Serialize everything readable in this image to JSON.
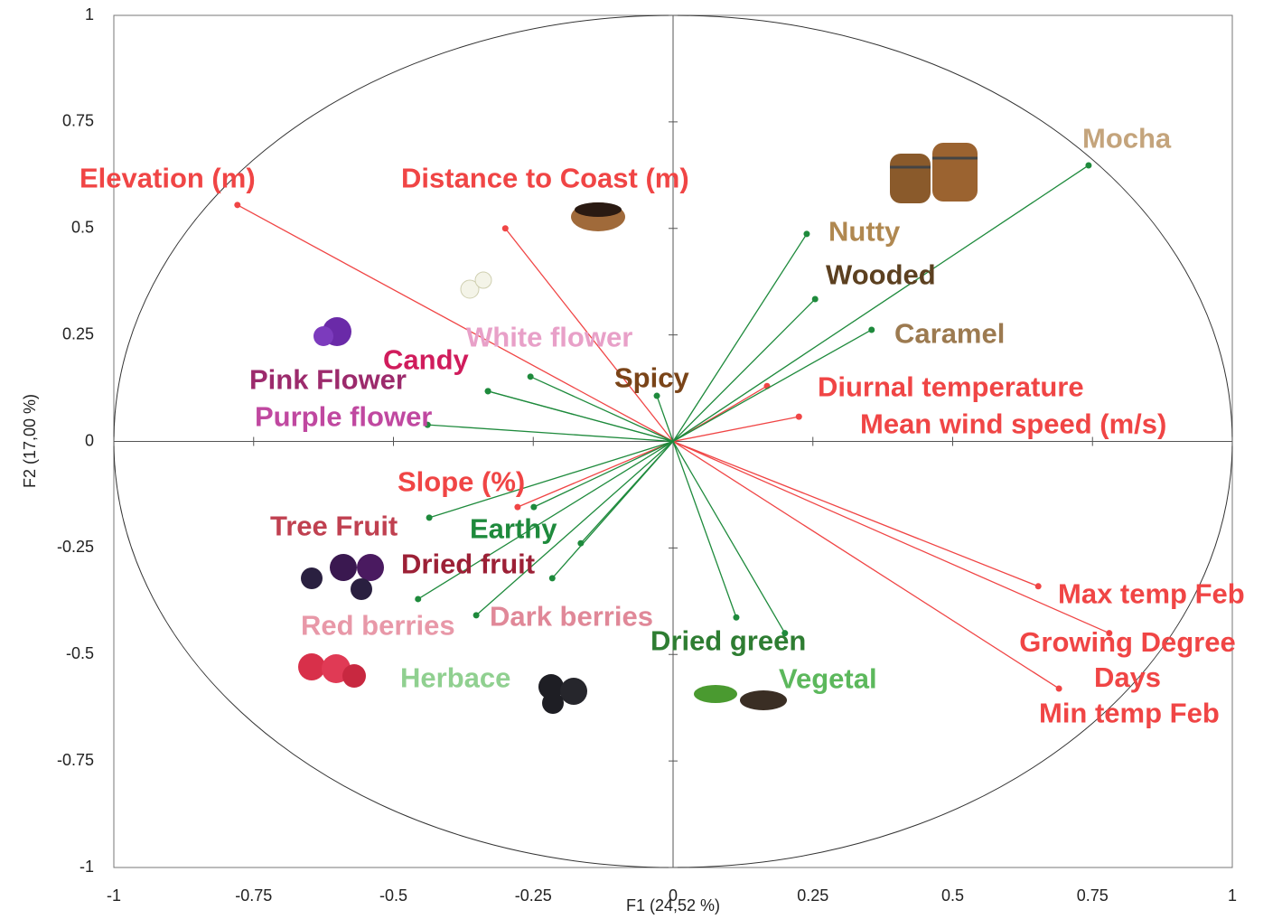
{
  "chart_data": {
    "type": "biplot",
    "x_label": "F1 (24,52 %)",
    "y_label": "F2 (17,00 %)",
    "xlim": [
      -1,
      1
    ],
    "ylim": [
      -1,
      1
    ],
    "xticks": [
      -1,
      -0.75,
      -0.5,
      -0.25,
      0,
      0.25,
      0.5,
      0.75,
      1
    ],
    "yticks": [
      -1,
      -0.75,
      -0.5,
      -0.25,
      0,
      0.25,
      0.5,
      0.75,
      1
    ],
    "points": [
      {
        "label": "Elevation (m)",
        "x": -0.779,
        "y": 0.555,
        "color": "#f04545",
        "label_color": "#f04545"
      },
      {
        "label": "Distance to Coast (m)",
        "x": -0.3,
        "y": 0.5,
        "color": "#f04545",
        "label_color": "#f04545"
      },
      {
        "label": "Diurnal temperature",
        "x": 0.168,
        "y": 0.13,
        "color": "#f04545",
        "label_color": "#f04545"
      },
      {
        "label": "Mean wind speed (m/s)",
        "x": 0.225,
        "y": 0.058,
        "color": "#f04545",
        "label_color": "#f04545"
      },
      {
        "label": "Slope (%)",
        "x": -0.278,
        "y": -0.154,
        "color": "#f04545",
        "label_color": "#f04545"
      },
      {
        "label": "Max temp Feb",
        "x": 0.653,
        "y": -0.34,
        "color": "#f04545",
        "label_color": "#f04545"
      },
      {
        "label": "Growing Degree Days",
        "x": 0.78,
        "y": -0.45,
        "color": "#f04545",
        "label_color": "#f04545"
      },
      {
        "label": "Min temp Feb",
        "x": 0.69,
        "y": -0.58,
        "color": "#f04545",
        "label_color": "#f04545"
      },
      {
        "label": "Mocha",
        "x": 0.743,
        "y": 0.648,
        "color": "#1e8a3c",
        "label_color": "#c4a47c"
      },
      {
        "label": "Nutty",
        "x": 0.239,
        "y": 0.487,
        "color": "#1e8a3c",
        "label_color": "#b08850"
      },
      {
        "label": "Wooded",
        "x": 0.254,
        "y": 0.334,
        "color": "#1e8a3c",
        "label_color": "#5c4020"
      },
      {
        "label": "Caramel",
        "x": 0.355,
        "y": 0.262,
        "color": "#1e8a3c",
        "label_color": "#9c7a50"
      },
      {
        "label": "Spicy",
        "x": -0.029,
        "y": 0.107,
        "color": "#1e8a3c",
        "label_color": "#7a4418"
      },
      {
        "label": "White flower",
        "x": -0.255,
        "y": 0.152,
        "color": "#1e8a3c",
        "label_color": "#e8a0c8"
      },
      {
        "label": "Candy",
        "x": -0.331,
        "y": 0.118,
        "color": "#1e8a3c",
        "label_color": "#d01c5c"
      },
      {
        "label": "Pink Flower",
        "x": -0.331,
        "y": 0.118,
        "color": "#1e8a3c",
        "label_color": "#9c2a6c"
      },
      {
        "label": "Purple flower",
        "x": -0.439,
        "y": 0.039,
        "color": "#1e8a3c",
        "label_color": "#c048a0"
      },
      {
        "label": "Tree Fruit",
        "x": -0.436,
        "y": -0.179,
        "color": "#1e8a3c",
        "label_color": "#c04050"
      },
      {
        "label": "Earthy",
        "x": -0.249,
        "y": -0.154,
        "color": "#1e8a3c",
        "label_color": "#1e8a3c"
      },
      {
        "label": "Dried fruit",
        "x": -0.165,
        "y": -0.239,
        "color": "#1e8a3c",
        "label_color": "#9c2036"
      },
      {
        "label": "Dark berries",
        "x": -0.216,
        "y": -0.321,
        "color": "#1e8a3c",
        "label_color": "#e08898"
      },
      {
        "label": "Red berries",
        "x": -0.456,
        "y": -0.37,
        "color": "#1e8a3c",
        "label_color": "#e898a8"
      },
      {
        "label": "Herbace",
        "x": -0.352,
        "y": -0.408,
        "color": "#1e8a3c",
        "label_color": "#90d090"
      },
      {
        "label": "Dried green",
        "x": 0.113,
        "y": -0.413,
        "color": "#1e8a3c",
        "label_color": "#2e7d32"
      },
      {
        "label": "Vegetal",
        "x": 0.2,
        "y": -0.45,
        "color": "#1e8a3c",
        "label_color": "#5cb85c"
      }
    ]
  }
}
